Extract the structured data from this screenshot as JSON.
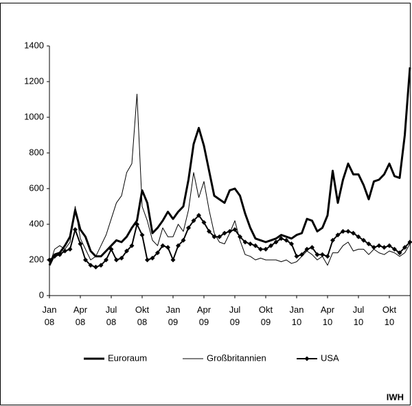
{
  "chart_data": {
    "type": "line",
    "categories": [
      "Jan 08",
      null,
      null,
      null,
      null,
      null,
      "Apr 08",
      null,
      null,
      null,
      null,
      null,
      "Jul 08",
      null,
      null,
      null,
      null,
      null,
      "Okt 08",
      null,
      null,
      null,
      null,
      null,
      "Jan 09",
      null,
      null,
      null,
      null,
      null,
      "Apr 09",
      null,
      null,
      null,
      null,
      null,
      "Jul 09",
      null,
      null,
      null,
      null,
      null,
      "Okt 09",
      null,
      null,
      null,
      null,
      null,
      "Jan 10",
      null,
      null,
      null,
      null,
      null,
      "Apr 10",
      null,
      null,
      null,
      null,
      null,
      "Jul 10",
      null,
      null,
      null,
      null,
      null,
      "Okt 10",
      null,
      null,
      null,
      null
    ],
    "series": [
      {
        "name": "Euroraum",
        "color": "#000000",
        "width": 3,
        "marker": false,
        "values": [
          170,
          230,
          240,
          280,
          330,
          480,
          370,
          330,
          250,
          220,
          220,
          250,
          280,
          310,
          300,
          330,
          380,
          420,
          590,
          520,
          350,
          380,
          420,
          470,
          430,
          470,
          500,
          650,
          850,
          940,
          840,
          700,
          560,
          540,
          520,
          590,
          600,
          560,
          460,
          380,
          320,
          310,
          300,
          310,
          320,
          340,
          330,
          320,
          340,
          350,
          430,
          420,
          360,
          380,
          450,
          700,
          520,
          650,
          740,
          680,
          680,
          620,
          540,
          640,
          650,
          680,
          740,
          670,
          660,
          900,
          1280
        ]
      },
      {
        "name": "Großbritannien",
        "color": "#000000",
        "width": 1,
        "marker": false,
        "values": [
          170,
          260,
          280,
          260,
          300,
          500,
          320,
          260,
          200,
          220,
          280,
          340,
          430,
          520,
          560,
          690,
          740,
          1130,
          500,
          420,
          310,
          280,
          380,
          330,
          330,
          400,
          360,
          480,
          690,
          550,
          640,
          480,
          350,
          300,
          290,
          350,
          420,
          310,
          230,
          220,
          200,
          210,
          200,
          200,
          200,
          190,
          200,
          180,
          190,
          220,
          250,
          230,
          200,
          220,
          170,
          240,
          240,
          280,
          300,
          250,
          260,
          260,
          230,
          260,
          240,
          230,
          250,
          240,
          220,
          240,
          290
        ]
      },
      {
        "name": "USA",
        "color": "#000000",
        "width": 2,
        "marker": true,
        "values": [
          200,
          220,
          230,
          250,
          260,
          370,
          290,
          200,
          170,
          160,
          170,
          200,
          260,
          200,
          210,
          250,
          280,
          400,
          340,
          200,
          210,
          240,
          280,
          270,
          200,
          280,
          310,
          380,
          420,
          450,
          410,
          360,
          330,
          330,
          350,
          360,
          370,
          330,
          300,
          290,
          280,
          260,
          260,
          280,
          300,
          320,
          310,
          290,
          220,
          230,
          260,
          270,
          230,
          230,
          220,
          310,
          340,
          360,
          360,
          350,
          330,
          310,
          290,
          270,
          280,
          270,
          280,
          260,
          240,
          270,
          300
        ]
      }
    ],
    "ylim": [
      0,
      1400
    ],
    "yticks": [
      0,
      200,
      400,
      600,
      800,
      1000,
      1200,
      1400
    ],
    "legend": "bottom",
    "note": "IWH"
  }
}
